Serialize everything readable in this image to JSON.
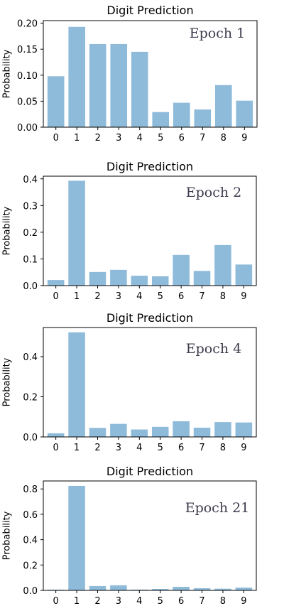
{
  "chart_data": [
    {
      "type": "bar",
      "title": "Digit Prediction",
      "ylabel": "Probability",
      "annotation": "Epoch 1",
      "categories": [
        "0",
        "1",
        "2",
        "3",
        "4",
        "5",
        "6",
        "7",
        "8",
        "9"
      ],
      "values": [
        0.098,
        0.193,
        0.16,
        0.16,
        0.145,
        0.029,
        0.047,
        0.034,
        0.081,
        0.051
      ],
      "ylim": [
        0,
        0.205
      ],
      "yticks": [
        0.0,
        0.05,
        0.1,
        0.15,
        0.2
      ],
      "ytick_labels": [
        "0.00",
        "0.05",
        "0.10",
        "0.15",
        "0.20"
      ],
      "bar_color": "#8fbbdb"
    },
    {
      "type": "bar",
      "title": "Digit Prediction",
      "ylabel": "Probability",
      "annotation": "Epoch 2",
      "categories": [
        "0",
        "1",
        "2",
        "3",
        "4",
        "5",
        "6",
        "7",
        "8",
        "9"
      ],
      "values": [
        0.021,
        0.393,
        0.051,
        0.059,
        0.037,
        0.035,
        0.115,
        0.055,
        0.152,
        0.079
      ],
      "ylim": [
        0,
        0.41
      ],
      "yticks": [
        0.0,
        0.1,
        0.2,
        0.3,
        0.4
      ],
      "ytick_labels": [
        "0.0",
        "0.1",
        "0.2",
        "0.3",
        "0.4"
      ],
      "bar_color": "#8fbbdb"
    },
    {
      "type": "bar",
      "title": "Digit Prediction",
      "ylabel": "Probability",
      "annotation": "Epoch 4",
      "categories": [
        "0",
        "1",
        "2",
        "3",
        "4",
        "5",
        "6",
        "7",
        "8",
        "9"
      ],
      "values": [
        0.018,
        0.521,
        0.045,
        0.065,
        0.037,
        0.05,
        0.078,
        0.046,
        0.074,
        0.072
      ],
      "ylim": [
        0,
        0.545
      ],
      "yticks": [
        0.0,
        0.2,
        0.4
      ],
      "ytick_labels": [
        "0.0",
        "0.2",
        "0.4"
      ],
      "bar_color": "#8fbbdb"
    },
    {
      "type": "bar",
      "title": "Digit Prediction",
      "ylabel": "Probability",
      "annotation": "Epoch 21",
      "categories": [
        "0",
        "1",
        "2",
        "3",
        "4",
        "5",
        "6",
        "7",
        "8",
        "9"
      ],
      "values": [
        0.005,
        0.824,
        0.034,
        0.04,
        0.006,
        0.011,
        0.028,
        0.017,
        0.013,
        0.022
      ],
      "ylim": [
        0,
        0.863
      ],
      "yticks": [
        0.0,
        0.2,
        0.4,
        0.6,
        0.8
      ],
      "ytick_labels": [
        "0.0",
        "0.2",
        "0.4",
        "0.6",
        "0.8"
      ],
      "bar_color": "#8fbbdb"
    }
  ]
}
